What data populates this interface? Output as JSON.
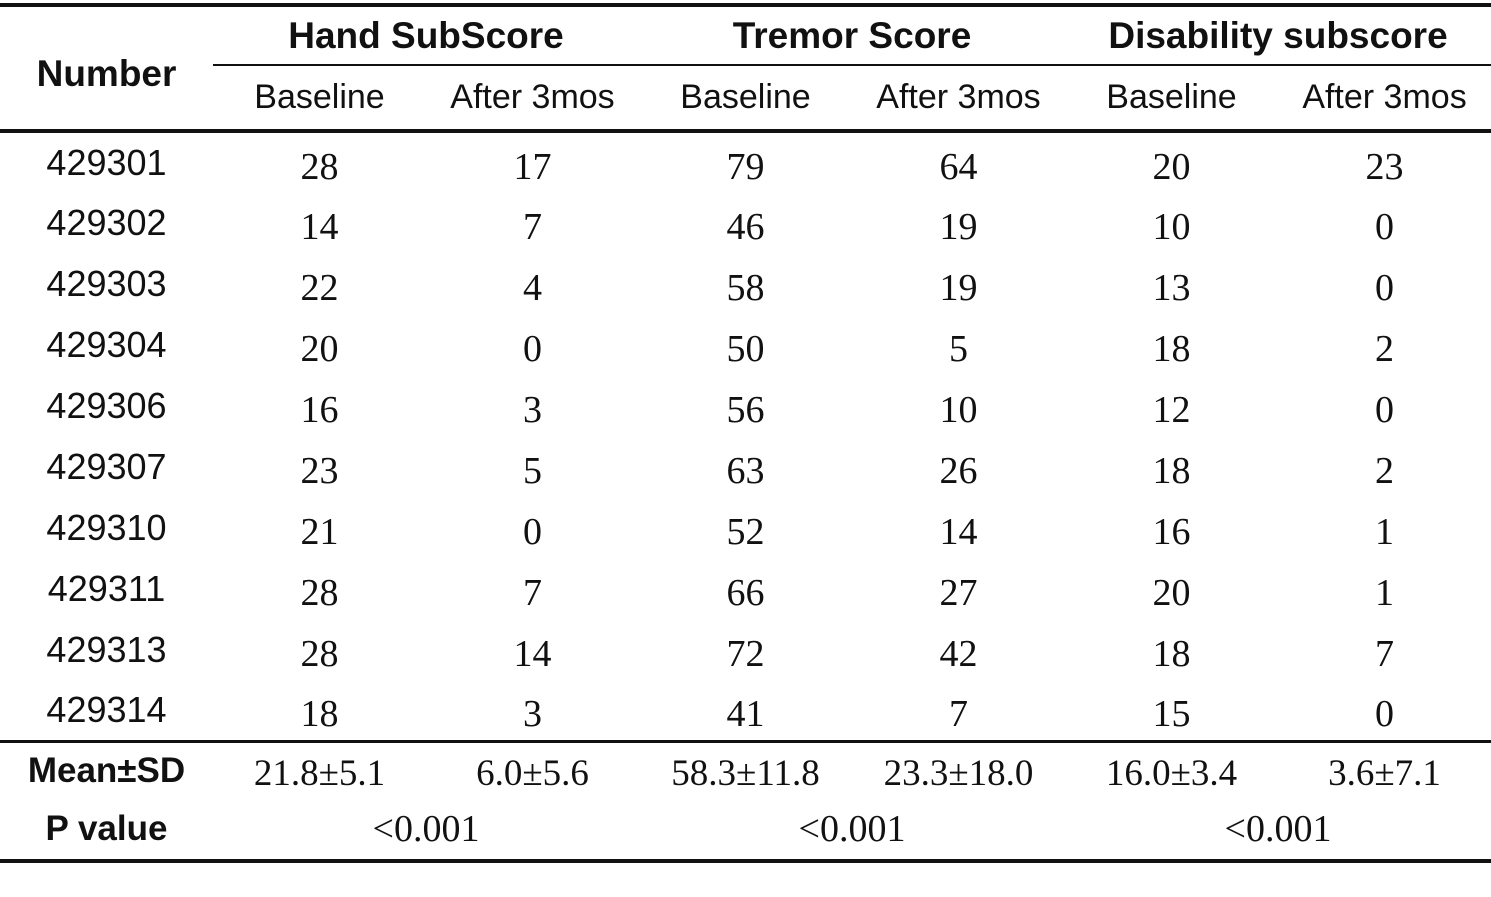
{
  "table": {
    "corner_header": "Number",
    "groups": [
      {
        "label": "Hand SubScore",
        "sub": [
          "Baseline",
          "After 3mos"
        ]
      },
      {
        "label": "Tremor Score",
        "sub": [
          "Baseline",
          "After 3mos"
        ]
      },
      {
        "label": "Disability subscore",
        "sub": [
          "Baseline",
          "After 3mos"
        ]
      }
    ],
    "rows": [
      {
        "id": "429301",
        "values": [
          "28",
          "17",
          "79",
          "64",
          "20",
          "23"
        ]
      },
      {
        "id": "429302",
        "values": [
          "14",
          "7",
          "46",
          "19",
          "10",
          "0"
        ]
      },
      {
        "id": "429303",
        "values": [
          "22",
          "4",
          "58",
          "19",
          "13",
          "0"
        ]
      },
      {
        "id": "429304",
        "values": [
          "20",
          "0",
          "50",
          "5",
          "18",
          "2"
        ]
      },
      {
        "id": "429306",
        "values": [
          "16",
          "3",
          "56",
          "10",
          "12",
          "0"
        ]
      },
      {
        "id": "429307",
        "values": [
          "23",
          "5",
          "63",
          "26",
          "18",
          "2"
        ]
      },
      {
        "id": "429310",
        "values": [
          "21",
          "0",
          "52",
          "14",
          "16",
          "1"
        ]
      },
      {
        "id": "429311",
        "values": [
          "28",
          "7",
          "66",
          "27",
          "20",
          "1"
        ]
      },
      {
        "id": "429313",
        "values": [
          "28",
          "14",
          "72",
          "42",
          "18",
          "7"
        ]
      },
      {
        "id": "429314",
        "values": [
          "18",
          "3",
          "41",
          "7",
          "15",
          "0"
        ]
      }
    ],
    "summary": {
      "mean_label": "Mean±SD",
      "means": [
        "21.8±5.1",
        "6.0±5.6",
        "58.3±11.8",
        "23.3±18.0",
        "16.0±3.4",
        "3.6±7.1"
      ],
      "p_label": "P value",
      "p_values": [
        "<0.001",
        "<0.001",
        "<0.001"
      ]
    },
    "text_color": "#111111",
    "background_color": "#ffffff"
  }
}
